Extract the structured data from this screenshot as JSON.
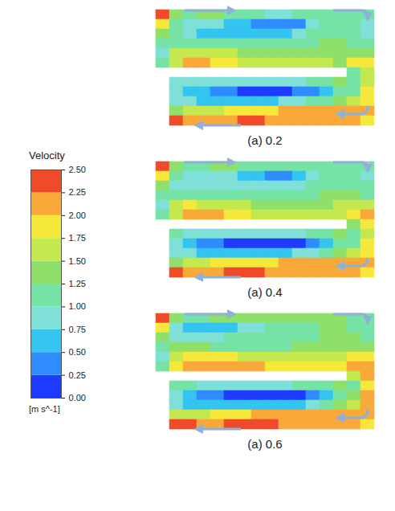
{
  "chart_data": {
    "type": "heatmap",
    "tick_labels": false,
    "panels": [
      {
        "title": "(a) 0.2",
        "cells": [
          [
            2.4,
            1.4,
            1.2,
            1.3,
            1.3,
            1.2,
            1.1,
            1.0,
            0.9,
            0.9,
            1.0,
            1.1,
            1.2,
            1.2,
            1.1,
            1.0
          ],
          [
            1.8,
            1.1,
            0.9,
            0.9,
            0.8,
            0.7,
            0.5,
            0.3,
            0.3,
            0.3,
            0.4,
            0.8,
            1.1,
            1.2,
            1.1,
            0.9
          ],
          [
            1.3,
            1.0,
            0.8,
            0.7,
            0.7,
            0.6,
            0.6,
            0.5,
            0.6,
            0.7,
            0.8,
            1.0,
            1.2,
            1.2,
            1.1,
            0.9
          ],
          [
            1.0,
            1.2,
            1.2,
            1.1,
            1.0,
            1.0,
            1.0,
            1.0,
            1.0,
            1.1,
            1.1,
            1.2,
            1.3,
            1.3,
            1.2,
            1.0
          ],
          [
            0.9,
            1.5,
            1.7,
            1.6,
            1.5,
            1.5,
            1.4,
            1.4,
            1.4,
            1.3,
            1.3,
            1.3,
            1.3,
            1.3,
            1.4,
            1.4
          ],
          [
            1.0,
            1.6,
            2.0,
            2.0,
            1.9,
            1.8,
            1.7,
            1.6,
            1.6,
            1.6,
            1.5,
            1.5,
            1.5,
            1.4,
            1.8,
            1.9
          ],
          [
            null,
            null,
            null,
            null,
            null,
            null,
            null,
            null,
            null,
            null,
            null,
            null,
            null,
            null,
            1.2,
            1.6
          ],
          [
            null,
            0.9,
            0.8,
            0.8,
            0.8,
            0.8,
            0.8,
            0.8,
            0.8,
            0.8,
            0.9,
            1.0,
            1.1,
            1.3,
            1.0,
            1.6
          ],
          [
            null,
            0.8,
            0.6,
            0.5,
            0.4,
            0.3,
            0.2,
            0.2,
            0.2,
            0.2,
            0.3,
            0.4,
            0.7,
            1.1,
            1.2,
            1.8
          ],
          [
            null,
            0.9,
            0.8,
            0.7,
            0.7,
            0.6,
            0.6,
            0.6,
            0.7,
            0.8,
            0.9,
            1.0,
            1.2,
            1.4,
            1.5,
            1.9
          ],
          [
            null,
            1.4,
            1.5,
            1.6,
            1.7,
            1.8,
            1.8,
            1.9,
            1.9,
            2.0,
            2.0,
            2.0,
            2.0,
            2.0,
            2.0,
            2.0
          ],
          [
            null,
            2.3,
            2.2,
            2.1,
            2.2,
            2.2,
            2.3,
            2.3,
            2.2,
            2.2,
            2.1,
            2.1,
            2.2,
            2.1,
            2.0,
            1.9
          ]
        ]
      },
      {
        "title": "(a) 0.4",
        "cells": [
          [
            2.4,
            1.4,
            1.2,
            1.2,
            1.3,
            1.3,
            1.2,
            1.2,
            1.1,
            1.1,
            1.1,
            1.2,
            1.2,
            1.2,
            1.1,
            1.0
          ],
          [
            1.8,
            1.0,
            0.9,
            0.9,
            0.9,
            0.8,
            0.7,
            0.5,
            0.4,
            0.4,
            0.5,
            0.8,
            1.0,
            1.1,
            1.1,
            0.9
          ],
          [
            1.3,
            0.9,
            0.8,
            0.8,
            0.8,
            0.8,
            0.8,
            0.8,
            0.8,
            0.8,
            0.9,
            1.0,
            1.1,
            1.2,
            1.2,
            1.0
          ],
          [
            1.0,
            1.2,
            1.2,
            1.1,
            1.1,
            1.0,
            1.0,
            1.0,
            1.0,
            1.0,
            1.1,
            1.2,
            1.3,
            1.3,
            1.3,
            1.2
          ],
          [
            0.9,
            1.6,
            1.8,
            1.7,
            1.6,
            1.5,
            1.5,
            1.4,
            1.4,
            1.4,
            1.4,
            1.4,
            1.4,
            1.5,
            1.6,
            1.6
          ],
          [
            1.0,
            1.7,
            2.1,
            2.1,
            2.0,
            1.9,
            1.8,
            1.7,
            1.7,
            1.7,
            1.6,
            1.6,
            1.6,
            1.6,
            1.9,
            2.0
          ],
          [
            null,
            null,
            null,
            null,
            null,
            null,
            null,
            null,
            null,
            null,
            null,
            null,
            null,
            null,
            1.4,
            1.8
          ],
          [
            null,
            1.0,
            0.9,
            0.9,
            0.9,
            0.8,
            0.8,
            0.8,
            0.8,
            0.8,
            0.9,
            1.0,
            1.1,
            1.3,
            1.0,
            1.7
          ],
          [
            null,
            0.8,
            0.6,
            0.4,
            0.3,
            0.2,
            0.1,
            0.1,
            0.1,
            0.1,
            0.2,
            0.3,
            0.6,
            1.0,
            1.2,
            1.8
          ],
          [
            null,
            0.9,
            0.8,
            0.7,
            0.6,
            0.6,
            0.5,
            0.5,
            0.6,
            0.7,
            0.8,
            0.9,
            1.1,
            1.3,
            1.5,
            1.9
          ],
          [
            null,
            1.4,
            1.6,
            1.7,
            1.8,
            1.8,
            1.9,
            1.9,
            1.9,
            2.0,
            2.0,
            2.0,
            2.0,
            2.0,
            2.0,
            2.0
          ],
          [
            null,
            2.3,
            2.2,
            2.2,
            2.2,
            2.3,
            2.3,
            2.3,
            2.2,
            2.2,
            2.2,
            2.1,
            2.2,
            2.1,
            2.0,
            1.9
          ]
        ]
      },
      {
        "title": "(a) 0.6",
        "cells": [
          [
            2.4,
            1.4,
            1.2,
            1.2,
            1.3,
            1.3,
            1.3,
            1.3,
            1.3,
            1.3,
            1.3,
            1.3,
            1.3,
            1.3,
            1.2,
            1.1
          ],
          [
            1.8,
            0.9,
            0.7,
            0.6,
            0.6,
            0.7,
            0.8,
            0.9,
            1.0,
            1.1,
            1.2,
            1.2,
            1.3,
            1.3,
            1.2,
            1.0
          ],
          [
            1.3,
            0.9,
            0.8,
            0.8,
            0.9,
            1.0,
            1.1,
            1.1,
            1.1,
            1.2,
            1.2,
            1.2,
            1.3,
            1.3,
            1.3,
            1.1
          ],
          [
            1.0,
            1.3,
            1.3,
            1.3,
            1.2,
            1.2,
            1.2,
            1.2,
            1.2,
            1.2,
            1.3,
            1.3,
            1.4,
            1.4,
            1.4,
            1.4
          ],
          [
            0.9,
            1.7,
            1.9,
            1.9,
            1.8,
            1.8,
            1.7,
            1.6,
            1.6,
            1.6,
            1.5,
            1.5,
            1.6,
            1.6,
            1.8,
            1.8
          ],
          [
            1.0,
            1.8,
            2.1,
            2.2,
            2.2,
            2.2,
            2.1,
            2.0,
            1.9,
            1.9,
            1.8,
            1.8,
            1.8,
            1.8,
            2.0,
            2.1
          ],
          [
            null,
            null,
            null,
            null,
            null,
            null,
            null,
            null,
            null,
            null,
            null,
            null,
            null,
            null,
            1.6,
            2.0
          ],
          [
            null,
            1.0,
            1.0,
            0.9,
            0.9,
            0.9,
            0.9,
            0.9,
            0.9,
            0.9,
            1.0,
            1.1,
            1.2,
            1.4,
            1.1,
            1.9
          ],
          [
            null,
            0.8,
            0.6,
            0.4,
            0.3,
            0.2,
            0.2,
            0.2,
            0.2,
            0.2,
            0.2,
            0.3,
            0.6,
            1.0,
            1.3,
            2.0
          ],
          [
            null,
            0.9,
            0.7,
            0.6,
            0.5,
            0.5,
            0.5,
            0.5,
            0.5,
            0.6,
            0.7,
            0.9,
            1.1,
            1.3,
            1.6,
            2.0
          ],
          [
            null,
            1.5,
            1.6,
            1.7,
            1.8,
            1.9,
            1.9,
            2.0,
            2.0,
            2.0,
            2.0,
            2.0,
            2.0,
            2.1,
            2.1,
            2.0
          ],
          [
            null,
            2.3,
            2.3,
            2.2,
            2.2,
            2.3,
            2.3,
            2.3,
            2.3,
            2.2,
            2.2,
            2.2,
            2.2,
            2.1,
            2.0,
            1.9
          ]
        ]
      }
    ],
    "colorbar": {
      "title": "Velocity",
      "unit": "[m s^-1]",
      "range": [
        0,
        2.5
      ],
      "ticks": [
        {
          "value": 0,
          "label": "0.00"
        },
        {
          "value": 0.25,
          "label": "0.25"
        },
        {
          "value": 0.5,
          "label": "0.50"
        },
        {
          "value": 0.75,
          "label": "0.75"
        },
        {
          "value": 1,
          "label": "1.00"
        },
        {
          "value": 1.25,
          "label": "1.25"
        },
        {
          "value": 1.5,
          "label": "1.50"
        },
        {
          "value": 1.75,
          "label": "1.75"
        },
        {
          "value": 2,
          "label": "2.00"
        },
        {
          "value": 2.25,
          "label": "2.25"
        },
        {
          "value": 2.5,
          "label": "2.50"
        }
      ],
      "colors": [
        "#1e3cff",
        "#2e8cff",
        "#33c4f0",
        "#7fe0d8",
        "#76e3a6",
        "#8ee06a",
        "#c4e94e",
        "#f5e83a",
        "#f9a93a",
        "#ef4a2a"
      ]
    }
  }
}
